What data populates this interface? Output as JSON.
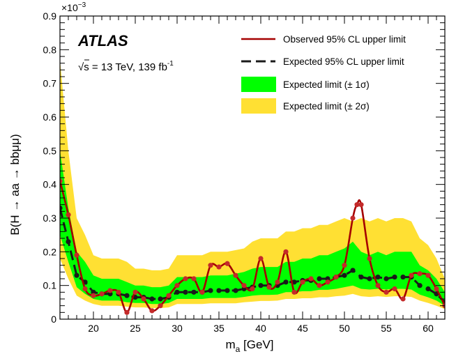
{
  "chart_data": {
    "type": "line",
    "experiment": "ATLAS",
    "energy_label": "√s = 13 TeV, 139 fb",
    "energy_label_sup": "-1",
    "xlabel_main": "m",
    "xlabel_sub": "a",
    "xlabel_unit": " [GeV]",
    "ylabel": "B(H → aa → bbμμ)",
    "y_multiplier": "×10",
    "y_multiplier_exp": "−3",
    "xlim": [
      16,
      62
    ],
    "ylim": [
      0,
      0.9
    ],
    "x_ticks": [
      20,
      25,
      30,
      35,
      40,
      45,
      50,
      55,
      60
    ],
    "y_ticks": [
      0,
      0.1,
      0.2,
      0.3,
      0.4,
      0.5,
      0.6,
      0.7,
      0.8,
      0.9
    ],
    "y_tick_labels": [
      "0",
      "0.1",
      "0.2",
      "0.3",
      "0.4",
      "0.5",
      "0.6",
      "0.7",
      "0.8",
      "0.9"
    ],
    "legend_position": "top-right",
    "colors": {
      "observed": "#a50000",
      "observed_marker": "#c42a2a",
      "expected": "#1a1a1a",
      "band1": "#00ff00",
      "band2": "#ffe033"
    },
    "legend": [
      {
        "key": "observed",
        "label": "Observed 95% CL upper limit"
      },
      {
        "key": "expected",
        "label": "Expected 95% CL upper limit"
      },
      {
        "key": "band1",
        "label": "Expected limit (± 1σ)"
      },
      {
        "key": "band2",
        "label": "Expected limit (± 2σ)"
      }
    ],
    "expected": {
      "x": [
        16,
        17,
        18,
        19,
        20,
        21,
        22,
        23,
        24,
        25,
        26,
        27,
        28,
        29,
        30,
        31,
        32,
        33,
        34,
        35,
        36,
        37,
        38,
        39,
        40,
        41,
        42,
        43,
        44,
        45,
        46,
        47,
        48,
        49,
        50,
        51,
        52,
        53,
        54,
        55,
        56,
        57,
        58,
        59,
        60,
        61,
        62
      ],
      "y": [
        0.33,
        0.23,
        0.13,
        0.11,
        0.08,
        0.075,
        0.075,
        0.075,
        0.07,
        0.065,
        0.065,
        0.06,
        0.06,
        0.065,
        0.08,
        0.08,
        0.08,
        0.08,
        0.085,
        0.085,
        0.085,
        0.085,
        0.09,
        0.095,
        0.1,
        0.1,
        0.1,
        0.11,
        0.11,
        0.115,
        0.115,
        0.12,
        0.12,
        0.125,
        0.13,
        0.145,
        0.125,
        0.12,
        0.125,
        0.12,
        0.125,
        0.125,
        0.125,
        0.1,
        0.09,
        0.075,
        0.05
      ],
      "m1": [
        0.25,
        0.17,
        0.095,
        0.075,
        0.06,
        0.055,
        0.055,
        0.055,
        0.05,
        0.048,
        0.048,
        0.045,
        0.045,
        0.048,
        0.06,
        0.06,
        0.06,
        0.06,
        0.063,
        0.063,
        0.063,
        0.063,
        0.066,
        0.07,
        0.072,
        0.072,
        0.073,
        0.08,
        0.08,
        0.083,
        0.083,
        0.087,
        0.087,
        0.09,
        0.095,
        0.1,
        0.09,
        0.088,
        0.09,
        0.088,
        0.09,
        0.09,
        0.088,
        0.073,
        0.065,
        0.055,
        0.04
      ],
      "p1": [
        0.5,
        0.33,
        0.2,
        0.17,
        0.13,
        0.12,
        0.12,
        0.12,
        0.11,
        0.1,
        0.1,
        0.095,
        0.095,
        0.1,
        0.125,
        0.125,
        0.125,
        0.125,
        0.13,
        0.13,
        0.13,
        0.135,
        0.14,
        0.15,
        0.155,
        0.155,
        0.155,
        0.17,
        0.17,
        0.18,
        0.18,
        0.19,
        0.19,
        0.2,
        0.21,
        0.23,
        0.2,
        0.19,
        0.2,
        0.19,
        0.2,
        0.2,
        0.2,
        0.16,
        0.145,
        0.12,
        0.08
      ],
      "m2": [
        0.18,
        0.12,
        0.07,
        0.055,
        0.045,
        0.04,
        0.04,
        0.04,
        0.037,
        0.035,
        0.035,
        0.033,
        0.033,
        0.035,
        0.045,
        0.045,
        0.045,
        0.045,
        0.047,
        0.047,
        0.047,
        0.047,
        0.05,
        0.052,
        0.054,
        0.054,
        0.055,
        0.06,
        0.06,
        0.062,
        0.062,
        0.065,
        0.065,
        0.068,
        0.07,
        0.075,
        0.068,
        0.066,
        0.068,
        0.066,
        0.068,
        0.068,
        0.066,
        0.055,
        0.048,
        0.04,
        0.03
      ],
      "p2": [
        0.77,
        0.5,
        0.3,
        0.25,
        0.19,
        0.18,
        0.18,
        0.18,
        0.17,
        0.15,
        0.15,
        0.145,
        0.145,
        0.15,
        0.19,
        0.19,
        0.19,
        0.19,
        0.2,
        0.2,
        0.2,
        0.205,
        0.21,
        0.23,
        0.24,
        0.24,
        0.24,
        0.26,
        0.26,
        0.27,
        0.27,
        0.28,
        0.28,
        0.29,
        0.3,
        0.29,
        0.3,
        0.29,
        0.3,
        0.29,
        0.3,
        0.3,
        0.29,
        0.24,
        0.22,
        0.18,
        0.12
      ]
    },
    "observed": {
      "x": [
        16,
        17,
        18,
        19,
        20,
        21,
        22,
        23,
        24,
        25,
        26,
        27,
        28,
        29,
        30,
        31,
        32,
        33,
        34,
        35,
        36,
        37,
        38,
        39,
        40,
        41,
        42,
        43,
        44,
        45,
        46,
        47,
        48,
        49,
        50,
        51,
        51.5,
        52,
        53,
        54,
        55,
        56,
        57,
        58,
        59,
        60,
        61,
        62
      ],
      "y": [
        0.41,
        0.31,
        0.19,
        0.09,
        0.07,
        0.075,
        0.085,
        0.08,
        0.02,
        0.08,
        0.06,
        0.025,
        0.04,
        0.07,
        0.1,
        0.12,
        0.12,
        0.08,
        0.16,
        0.155,
        0.165,
        0.13,
        0.1,
        0.09,
        0.18,
        0.095,
        0.11,
        0.2,
        0.08,
        0.11,
        0.12,
        0.1,
        0.11,
        0.125,
        0.16,
        0.3,
        0.34,
        0.34,
        0.18,
        0.1,
        0.08,
        0.09,
        0.06,
        0.13,
        0.135,
        0.13,
        0.09,
        0.04
      ]
    }
  }
}
